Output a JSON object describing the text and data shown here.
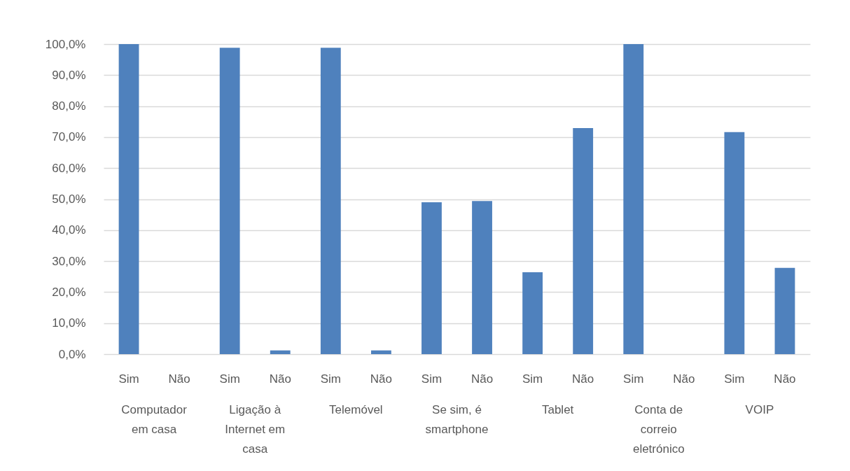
{
  "chart_data": {
    "type": "bar",
    "categories": [
      "Computador em casa",
      "Ligação à Internet em casa",
      "Telemóvel",
      "Se sim, é smartphone",
      "Tablet",
      "Conta de correio eletrónico",
      "VOIP"
    ],
    "series": [
      {
        "name": "Sim",
        "color": "#4f81bd",
        "values": [
          100,
          98.8,
          98.8,
          49.0,
          26.4,
          100,
          71.6
        ]
      },
      {
        "name": "Não",
        "color": "#4f81bd",
        "values": [
          0,
          1.2,
          1.2,
          49.4,
          72.9,
          0,
          27.8
        ]
      }
    ],
    "ylim": [
      0,
      100
    ],
    "yticks": [
      {
        "value": 0,
        "label": "0,0%"
      },
      {
        "value": 10,
        "label": "10,0%"
      },
      {
        "value": 20,
        "label": "20,0%"
      },
      {
        "value": 30,
        "label": "30,0%"
      },
      {
        "value": 40,
        "label": "40,0%"
      },
      {
        "value": 50,
        "label": "50,0%"
      },
      {
        "value": 60,
        "label": "60,0%"
      },
      {
        "value": 70,
        "label": "70,0%"
      },
      {
        "value": 80,
        "label": "80,0%"
      },
      {
        "value": 90,
        "label": "90,0%"
      },
      {
        "value": 100,
        "label": "100,0%"
      }
    ],
    "grid": "y",
    "legend": false
  }
}
